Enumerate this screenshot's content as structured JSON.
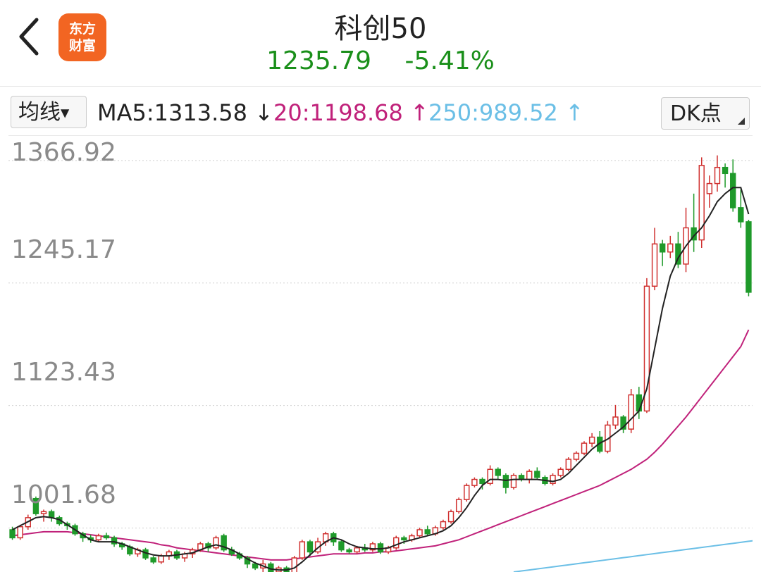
{
  "header": {
    "logo_line1": "东方",
    "logo_line2": "财富",
    "title": "科创50",
    "price": "1235.79",
    "change": "-5.41%"
  },
  "toolbar": {
    "ma_button": "均线",
    "ma5": "MA5:1313.58 ↓",
    "ma20": "20:1198.68 ↑",
    "ma250": "250:989.52 ↑",
    "dk_button": "DK点"
  },
  "colors": {
    "up": "#d0302f",
    "down": "#1f9a2a",
    "ma5": "#222222",
    "ma20": "#c0217a",
    "ma250": "#6bbfe6",
    "price_green": "#1a8f1a"
  },
  "y_labels": [
    "1366.92",
    "1245.17",
    "1123.43",
    "1001.68"
  ],
  "chart_data": {
    "type": "candlestick",
    "ylim": [
      958,
      1392
    ],
    "grid": true,
    "candles": [
      [
        1000,
        992,
        1003,
        990
      ],
      [
        992,
        1003,
        1005,
        990
      ],
      [
        1003,
        1012,
        1015,
        1000
      ],
      [
        1031,
        1016,
        1033,
        1014
      ],
      [
        1016,
        1018,
        1020,
        1008
      ],
      [
        1018,
        1012,
        1020,
        1008
      ],
      [
        1012,
        1006,
        1014,
        1004
      ],
      [
        1006,
        1004,
        1008,
        1000
      ],
      [
        1004,
        996,
        1006,
        994
      ],
      [
        996,
        992,
        998,
        988
      ],
      [
        992,
        990,
        995,
        987
      ],
      [
        990,
        994,
        996,
        988
      ],
      [
        994,
        992,
        997,
        990
      ],
      [
        992,
        986,
        994,
        983
      ],
      [
        986,
        983,
        988,
        980
      ],
      [
        983,
        976,
        985,
        974
      ],
      [
        976,
        980,
        982,
        973
      ],
      [
        980,
        972,
        982,
        970
      ],
      [
        972,
        968,
        974,
        966
      ],
      [
        968,
        974,
        976,
        966
      ],
      [
        974,
        978,
        980,
        970
      ],
      [
        978,
        972,
        980,
        970
      ],
      [
        972,
        976,
        978,
        968
      ],
      [
        976,
        980,
        982,
        972
      ],
      [
        980,
        986,
        988,
        978
      ],
      [
        986,
        982,
        988,
        978
      ],
      [
        982,
        992,
        994,
        980
      ],
      [
        994,
        980,
        996,
        978
      ],
      [
        980,
        976,
        983,
        974
      ],
      [
        976,
        972,
        978,
        970
      ],
      [
        972,
        966,
        974,
        962
      ],
      [
        966,
        962,
        968,
        960
      ],
      [
        962,
        966,
        970,
        958
      ],
      [
        966,
        958,
        968,
        956
      ],
      [
        958,
        962,
        964,
        954
      ],
      [
        962,
        956,
        964,
        952
      ],
      [
        956,
        972,
        974,
        954
      ],
      [
        972,
        988,
        990,
        970
      ],
      [
        988,
        978,
        990,
        974
      ],
      [
        978,
        988,
        992,
        976
      ],
      [
        988,
        996,
        998,
        984
      ],
      [
        996,
        988,
        998,
        984
      ],
      [
        988,
        980,
        990,
        978
      ],
      [
        980,
        978,
        982,
        976
      ],
      [
        978,
        982,
        984,
        976
      ],
      [
        982,
        980,
        986,
        978
      ],
      [
        980,
        986,
        988,
        978
      ],
      [
        986,
        978,
        988,
        976
      ],
      [
        978,
        982,
        984,
        976
      ],
      [
        982,
        992,
        994,
        980
      ],
      [
        992,
        990,
        994,
        986
      ],
      [
        990,
        994,
        996,
        988
      ],
      [
        994,
        1000,
        1002,
        992
      ],
      [
        1000,
        996,
        1004,
        994
      ],
      [
        996,
        1002,
        1004,
        994
      ],
      [
        1002,
        1008,
        1010,
        1000
      ],
      [
        1008,
        1018,
        1020,
        1006
      ],
      [
        1018,
        1030,
        1032,
        1016
      ],
      [
        1030,
        1044,
        1046,
        1028
      ],
      [
        1044,
        1050,
        1052,
        1042
      ],
      [
        1050,
        1046,
        1052,
        1040
      ],
      [
        1046,
        1060,
        1064,
        1044
      ],
      [
        1060,
        1054,
        1062,
        1050
      ],
      [
        1054,
        1042,
        1056,
        1036
      ],
      [
        1042,
        1054,
        1056,
        1040
      ],
      [
        1054,
        1050,
        1056,
        1048
      ],
      [
        1050,
        1058,
        1060,
        1046
      ],
      [
        1058,
        1052,
        1062,
        1050
      ],
      [
        1052,
        1046,
        1054,
        1044
      ],
      [
        1046,
        1054,
        1056,
        1044
      ],
      [
        1054,
        1060,
        1062,
        1052
      ],
      [
        1060,
        1070,
        1072,
        1058
      ],
      [
        1070,
        1076,
        1078,
        1068
      ],
      [
        1076,
        1086,
        1088,
        1074
      ],
      [
        1086,
        1092,
        1096,
        1082
      ],
      [
        1092,
        1078,
        1098,
        1076
      ],
      [
        1078,
        1104,
        1108,
        1076
      ],
      [
        1104,
        1112,
        1124,
        1100
      ],
      [
        1112,
        1100,
        1114,
        1096
      ],
      [
        1100,
        1134,
        1140,
        1096
      ],
      [
        1134,
        1118,
        1142,
        1110
      ],
      [
        1118,
        1242,
        1250,
        1116
      ],
      [
        1242,
        1284,
        1300,
        1238
      ],
      [
        1284,
        1276,
        1288,
        1262
      ],
      [
        1276,
        1284,
        1292,
        1270
      ],
      [
        1284,
        1264,
        1296,
        1260
      ],
      [
        1264,
        1300,
        1320,
        1256
      ],
      [
        1300,
        1288,
        1334,
        1276
      ],
      [
        1288,
        1362,
        1370,
        1280
      ],
      [
        1334,
        1344,
        1352,
        1320
      ],
      [
        1344,
        1360,
        1372,
        1336
      ],
      [
        1360,
        1354,
        1364,
        1340
      ],
      [
        1354,
        1320,
        1368,
        1316
      ],
      [
        1320,
        1306,
        1338,
        1300
      ],
      [
        1306,
        1236,
        1308,
        1232
      ]
    ],
    "ma5": [
      1000,
      1004,
      1008,
      1012,
      1013,
      1012,
      1010,
      1005,
      1000,
      995,
      990,
      988,
      988,
      988,
      986,
      983,
      980,
      977,
      975,
      974,
      974,
      975,
      976,
      977,
      980,
      983,
      985,
      983,
      980,
      976,
      971,
      967,
      964,
      961,
      960,
      960,
      962,
      968,
      975,
      982,
      988,
      992,
      990,
      986,
      983,
      982,
      981,
      981,
      982,
      985,
      988,
      990,
      992,
      994,
      996,
      999,
      1004,
      1012,
      1022,
      1034,
      1044,
      1050,
      1050,
      1049,
      1050,
      1050,
      1050,
      1050,
      1049,
      1048,
      1050,
      1056,
      1064,
      1072,
      1080,
      1086,
      1090,
      1096,
      1102,
      1110,
      1118,
      1140,
      1180,
      1220,
      1252,
      1270,
      1282,
      1292,
      1300,
      1312,
      1326,
      1334,
      1340,
      1340,
      1313.58
    ],
    "ma20": [
      994,
      995,
      996,
      997,
      998,
      998,
      998,
      998,
      997,
      996,
      995,
      994,
      993,
      992,
      991,
      990,
      989,
      988,
      987,
      985,
      984,
      982,
      981,
      980,
      979,
      978,
      977,
      976,
      975,
      974,
      973,
      972,
      971,
      970,
      970,
      970,
      971,
      972,
      973,
      974,
      975,
      976,
      976,
      976,
      976,
      977,
      977,
      978,
      978,
      979,
      980,
      981,
      982,
      983,
      984,
      986,
      988,
      990,
      993,
      996,
      999,
      1002,
      1005,
      1008,
      1011,
      1014,
      1017,
      1020,
      1023,
      1026,
      1029,
      1032,
      1035,
      1038,
      1041,
      1044,
      1048,
      1052,
      1056,
      1060,
      1065,
      1070,
      1077,
      1085,
      1094,
      1103,
      1112,
      1122,
      1132,
      1142,
      1152,
      1162,
      1172,
      1182,
      1198.68
    ],
    "ma250": [
      {
        "i": 64,
        "v": 958
      },
      {
        "i": 95,
        "v": 989.52
      }
    ],
    "note": "approx values read off the screenshot"
  }
}
